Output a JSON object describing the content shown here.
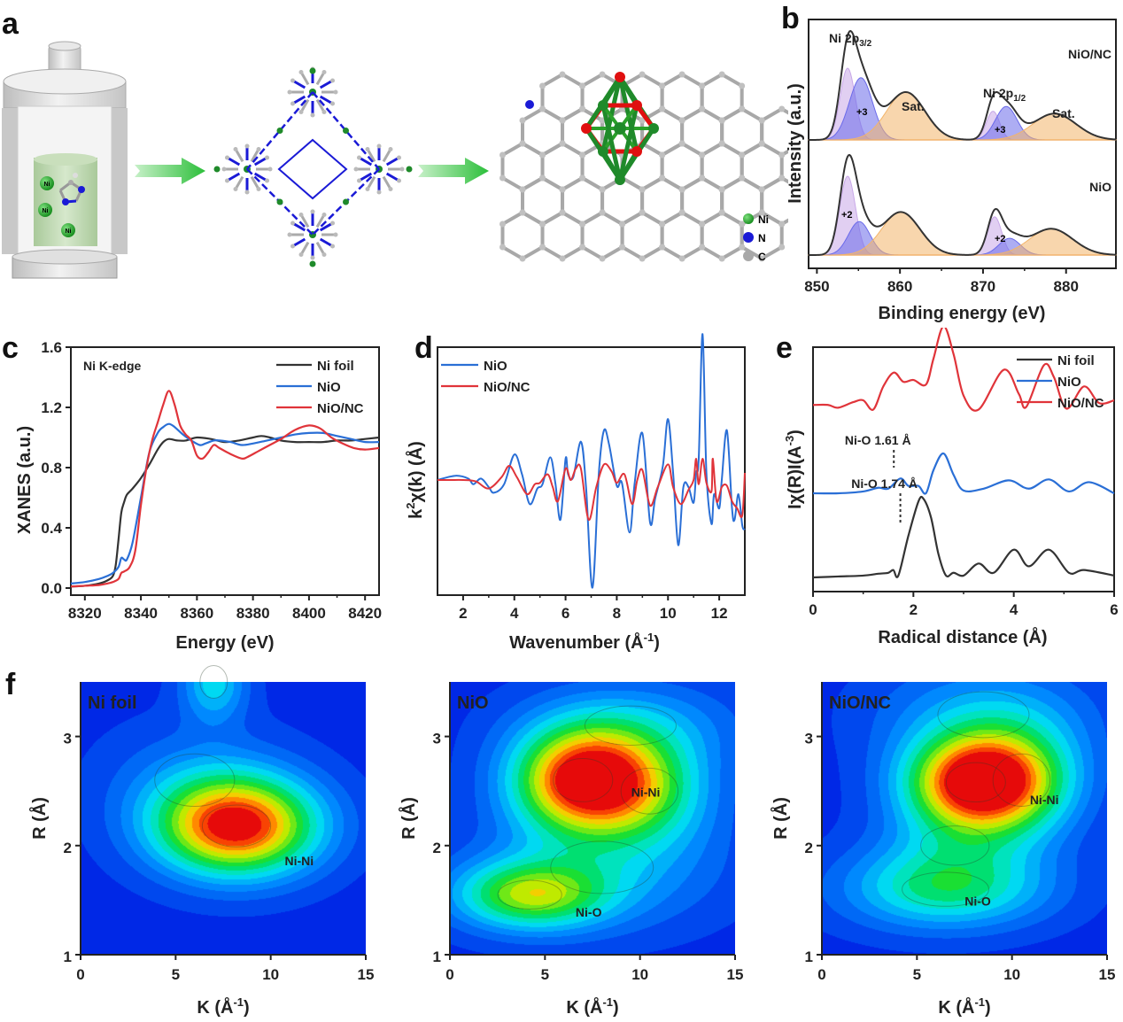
{
  "figure": {
    "panel_labels": [
      "a",
      "b",
      "c",
      "d",
      "e",
      "f"
    ]
  },
  "panel_a": {
    "reactor_labels": [
      "Ni",
      "Ni",
      "Ni"
    ],
    "legend": [
      {
        "label": "Ni",
        "color": "#1f8a2a"
      },
      {
        "label": "N",
        "color": "#1a1ad6"
      },
      {
        "label": "C",
        "color": "#a8a8a8"
      }
    ],
    "arrow_color": "#3cc34a"
  },
  "chart_data": [
    {
      "id": "b",
      "type": "line",
      "title": "",
      "xlabel": "Binding energy (eV)",
      "ylabel": "Intensity (a.u.)",
      "xlim": [
        849,
        886
      ],
      "xticks": [
        850,
        860,
        870,
        880
      ],
      "annotations": [
        "Ni 2p3/2",
        "Sat.",
        "Ni 2p1/2",
        "Sat.",
        "+3",
        "+3",
        "+2",
        "+2"
      ],
      "series": [
        {
          "name": "NiO/NC",
          "baseline": 0.55,
          "components": [
            {
              "label": "",
              "center": 853.7,
              "height": 0.3,
              "width": 0.9,
              "fill": "#c8a8e8"
            },
            {
              "label": "+3",
              "center": 855.3,
              "height": 0.26,
              "width": 1.4,
              "fill": "#6a6aea"
            },
            {
              "label": "Sat.",
              "center": 860.7,
              "height": 0.2,
              "width": 2.3,
              "fill": "#f3b46a"
            },
            {
              "label": "",
              "center": 871.2,
              "height": 0.12,
              "width": 0.8,
              "fill": "#c8a8e8"
            },
            {
              "label": "+3",
              "center": 872.8,
              "height": 0.14,
              "width": 1.3,
              "fill": "#6a6aea"
            },
            {
              "label": "Sat.",
              "center": 878.6,
              "height": 0.11,
              "width": 2.6,
              "fill": "#f3b46a"
            }
          ]
        },
        {
          "name": "NiO",
          "baseline": 0.0,
          "components": [
            {
              "label": "+2",
              "center": 853.7,
              "height": 0.33,
              "width": 0.95,
              "fill": "#c8a8e8"
            },
            {
              "label": "",
              "center": 855.1,
              "height": 0.14,
              "width": 1.3,
              "fill": "#6a6aea"
            },
            {
              "label": "Sat.",
              "center": 860.1,
              "height": 0.18,
              "width": 2.3,
              "fill": "#f3b46a"
            },
            {
              "label": "+2",
              "center": 871.4,
              "height": 0.16,
              "width": 0.85,
              "fill": "#c8a8e8"
            },
            {
              "label": "",
              "center": 873.2,
              "height": 0.07,
              "width": 1.3,
              "fill": "#6a6aea"
            },
            {
              "label": "Sat.",
              "center": 878.2,
              "height": 0.11,
              "width": 2.6,
              "fill": "#f3b46a"
            }
          ]
        }
      ],
      "sample_labels": [
        "NiO/NC",
        "NiO"
      ]
    },
    {
      "id": "c",
      "type": "line",
      "title": "Ni K-edge",
      "xlabel": "Energy (eV)",
      "ylabel": "XANES (a.u.)",
      "xlim": [
        8315,
        8425
      ],
      "ylim": [
        -0.05,
        1.6
      ],
      "xticks": [
        8320,
        8340,
        8360,
        8380,
        8400,
        8420
      ],
      "yticks": [
        "0.0",
        "0.4",
        "0.8",
        "1.2",
        "1.6"
      ],
      "legend_position": "top-right",
      "series": [
        {
          "name": "Ni foil",
          "color": "#333333",
          "x": [
            8315,
            8320,
            8325,
            8328,
            8330,
            8331,
            8332,
            8333,
            8334,
            8335,
            8337,
            8340,
            8343,
            8346,
            8348,
            8350,
            8353,
            8356,
            8360,
            8365,
            8370,
            8375,
            8380,
            8383,
            8386,
            8390,
            8395,
            8400,
            8405,
            8410,
            8415,
            8420,
            8425
          ],
          "y": [
            0.01,
            0.015,
            0.03,
            0.05,
            0.08,
            0.15,
            0.32,
            0.5,
            0.57,
            0.62,
            0.66,
            0.73,
            0.82,
            0.92,
            0.97,
            0.99,
            0.98,
            0.98,
            1.0,
            0.99,
            0.97,
            0.98,
            1.0,
            1.01,
            1.0,
            0.98,
            0.97,
            0.97,
            0.97,
            0.98,
            0.98,
            0.99,
            1.0
          ]
        },
        {
          "name": "NiO",
          "color": "#2a6fd6",
          "x": [
            8315,
            8320,
            8325,
            8328,
            8330,
            8332,
            8333,
            8334,
            8335,
            8337,
            8340,
            8343,
            8346,
            8348,
            8350,
            8352,
            8355,
            8358,
            8361,
            8363,
            8366,
            8368,
            8372,
            8376,
            8380,
            8385,
            8390,
            8395,
            8400,
            8405,
            8410,
            8415,
            8420,
            8425
          ],
          "y": [
            0.03,
            0.04,
            0.06,
            0.08,
            0.1,
            0.14,
            0.2,
            0.19,
            0.19,
            0.3,
            0.6,
            0.9,
            1.03,
            1.07,
            1.09,
            1.07,
            1.02,
            0.98,
            0.95,
            0.96,
            0.98,
            0.98,
            0.97,
            0.95,
            0.96,
            0.98,
            1.0,
            1.02,
            1.03,
            1.03,
            1.01,
            0.99,
            0.97,
            0.97
          ]
        },
        {
          "name": "NiO/NC",
          "color": "#e0343a",
          "x": [
            8315,
            8320,
            8325,
            8328,
            8330,
            8332,
            8333,
            8334,
            8336,
            8338,
            8340,
            8342,
            8344,
            8346,
            8348,
            8350,
            8352,
            8354,
            8356,
            8358,
            8360,
            8362,
            8364,
            8366,
            8368,
            8372,
            8376,
            8378,
            8382,
            8386,
            8390,
            8395,
            8400,
            8404,
            8408,
            8412,
            8416,
            8420,
            8425
          ],
          "y": [
            0.01,
            0.015,
            0.02,
            0.03,
            0.04,
            0.06,
            0.1,
            0.11,
            0.14,
            0.25,
            0.55,
            0.8,
            0.98,
            1.1,
            1.22,
            1.31,
            1.22,
            1.08,
            1.02,
            0.98,
            0.88,
            0.86,
            0.9,
            0.95,
            0.93,
            0.89,
            0.86,
            0.87,
            0.91,
            0.95,
            0.99,
            1.05,
            1.08,
            1.06,
            1.0,
            0.96,
            0.93,
            0.92,
            0.93
          ]
        }
      ]
    },
    {
      "id": "d",
      "type": "line",
      "title": "",
      "xlabel": "Wavenumber (Å-1)",
      "ylabel": "k2χ(k) (Å)",
      "xlim": [
        1,
        13
      ],
      "ylim": [
        -1.0,
        1.2
      ],
      "xticks": [
        2,
        4,
        6,
        8,
        10,
        12
      ],
      "legend_position": "top-left",
      "series": [
        {
          "name": "NiO",
          "color": "#2a6fd6",
          "x": [
            1.0,
            1.7,
            2.2,
            2.4,
            2.7,
            3.0,
            3.2,
            3.6,
            4.0,
            4.3,
            4.6,
            4.9,
            5.1,
            5.4,
            5.6,
            5.8,
            6.0,
            6.1,
            6.3,
            6.6,
            6.8,
            7.05,
            7.3,
            7.5,
            7.7,
            8.0,
            8.2,
            8.5,
            8.7,
            9.0,
            9.3,
            9.5,
            9.8,
            10.0,
            10.2,
            10.4,
            10.6,
            10.8,
            11.0,
            11.1,
            11.2,
            11.35,
            11.5,
            11.7,
            11.8,
            12.0,
            12.1,
            12.3,
            12.5,
            12.6,
            12.75,
            12.9,
            13.0
          ],
          "y": [
            0.0,
            0.03,
            0.01,
            -0.03,
            0.01,
            -0.05,
            -0.09,
            -0.03,
            0.18,
            0.04,
            -0.17,
            -0.06,
            -0.03,
            0.16,
            -0.02,
            -0.28,
            0.15,
            0.04,
            0.02,
            0.27,
            -0.05,
            -0.76,
            0.05,
            0.35,
            0.25,
            -0.04,
            -0.02,
            -0.37,
            -0.02,
            0.33,
            -0.3,
            -0.13,
            0.1,
            0.43,
            0.05,
            -0.46,
            -0.05,
            -0.05,
            -0.16,
            0.05,
            0.15,
            1.03,
            0.05,
            -0.31,
            -0.1,
            -0.2,
            0.0,
            0.35,
            -0.2,
            -0.28,
            -0.1,
            -0.32,
            -0.35
          ]
        },
        {
          "name": "NiO/NC",
          "color": "#e0343a",
          "x": [
            1.0,
            1.5,
            2.0,
            2.5,
            3.0,
            3.5,
            3.8,
            4.1,
            4.5,
            4.8,
            5.0,
            5.3,
            5.5,
            5.7,
            6.0,
            6.2,
            6.4,
            6.6,
            6.9,
            7.2,
            7.5,
            7.8,
            8.0,
            8.3,
            8.6,
            8.8,
            9.0,
            9.3,
            9.6,
            10.0,
            10.2,
            10.5,
            10.8,
            11.0,
            11.1,
            11.2,
            11.35,
            11.5,
            11.7,
            11.75,
            11.9,
            12.1,
            12.3,
            12.5,
            12.7,
            12.9,
            13.0
          ],
          "y": [
            0.0,
            0.0,
            0.0,
            -0.01,
            -0.06,
            0.02,
            0.1,
            0.02,
            -0.1,
            -0.03,
            -0.02,
            0.04,
            -0.05,
            -0.15,
            0.08,
            0.0,
            0.08,
            0.08,
            -0.28,
            -0.05,
            0.11,
            0.06,
            -0.02,
            0.04,
            -0.17,
            0.0,
            0.07,
            -0.18,
            -0.05,
            0.11,
            -0.05,
            -0.17,
            -0.07,
            0.0,
            0.15,
            -0.03,
            0.15,
            -0.02,
            -0.08,
            0.15,
            -0.15,
            -0.05,
            -0.04,
            -0.15,
            -0.2,
            -0.25,
            0.05
          ]
        }
      ]
    },
    {
      "id": "e",
      "type": "line",
      "title": "",
      "xlabel": "Radical distance (Å)",
      "ylabel": "Iχ(R)I(A-3)",
      "xlim": [
        0,
        6
      ],
      "xticks": [
        0,
        2,
        4,
        6
      ],
      "legend_position": "top-right",
      "annotations": [
        {
          "text": "Ni-O 1.61 Å",
          "x": 1.61,
          "series": "NiO/NC"
        },
        {
          "text": "Ni-O 1.74 Å",
          "x": 1.74,
          "series": "NiO"
        }
      ],
      "series": [
        {
          "name": "Ni foil",
          "color": "#333333",
          "offset": 0.0,
          "x": [
            0,
            0.5,
            1.0,
            1.3,
            1.5,
            1.6,
            1.7,
            1.9,
            2.1,
            2.2,
            2.35,
            2.5,
            2.65,
            2.8,
            3.0,
            3.3,
            3.6,
            4.0,
            4.3,
            4.7,
            5.1,
            5.4,
            6.0
          ],
          "y": [
            0.0,
            0.01,
            0.02,
            0.04,
            0.05,
            0.08,
            0.02,
            0.45,
            0.82,
            0.85,
            0.65,
            0.25,
            0.02,
            0.05,
            0.02,
            0.15,
            0.05,
            0.3,
            0.12,
            0.3,
            0.05,
            0.08,
            0.02
          ]
        },
        {
          "name": "NiO",
          "color": "#2a6fd6",
          "offset": 1.0,
          "x": [
            0,
            0.5,
            1.0,
            1.3,
            1.5,
            1.74,
            1.9,
            2.1,
            2.25,
            2.4,
            2.6,
            2.8,
            3.0,
            3.4,
            3.9,
            4.3,
            4.7,
            5.1,
            5.5,
            6.0
          ],
          "y": [
            0.0,
            0.0,
            0.02,
            0.06,
            0.05,
            0.16,
            0.08,
            0.08,
            0.0,
            0.25,
            0.43,
            0.2,
            0.03,
            0.05,
            0.14,
            0.05,
            0.15,
            0.02,
            0.12,
            0.0
          ]
        },
        {
          "name": "NiO/NC",
          "color": "#e0343a",
          "offset": 2.05,
          "x": [
            0,
            0.3,
            0.5,
            0.8,
            1.0,
            1.2,
            1.4,
            1.61,
            1.8,
            2.0,
            2.25,
            2.4,
            2.6,
            2.8,
            3.0,
            3.3,
            3.8,
            4.1,
            4.25,
            4.6,
            4.8,
            5.05,
            5.4,
            5.7,
            6.0
          ],
          "y": [
            0.0,
            0.0,
            -0.03,
            0.03,
            0.05,
            -0.05,
            0.2,
            0.35,
            0.25,
            0.27,
            0.22,
            0.5,
            0.85,
            0.55,
            0.1,
            -0.05,
            0.38,
            0.12,
            -0.02,
            0.43,
            0.3,
            -0.04,
            0.2,
            0.02,
            0.05
          ]
        }
      ]
    },
    {
      "id": "f",
      "type": "heatmap",
      "xlabel": "K (Å-1)",
      "ylabel": "R (Å)",
      "xlim": [
        0,
        15
      ],
      "ylim": [
        1,
        3.5
      ],
      "xticks": [
        0,
        5,
        10,
        15
      ],
      "yticks": [
        1,
        2,
        3
      ],
      "maps": [
        {
          "name": "Ni foil",
          "annotations": [
            {
              "text": "Ni-Ni",
              "k": 11.5,
              "r": 1.82
            }
          ],
          "peaks": [
            {
              "k": 8.2,
              "r": 2.18,
              "amp": 1.0,
              "sk": 3.0,
              "sr": 0.32
            },
            {
              "k": 7.0,
              "r": 3.5,
              "amp": 0.35,
              "sk": 1.2,
              "sr": 0.25
            },
            {
              "k": 6.0,
              "r": 2.6,
              "amp": 0.15,
              "sk": 3.5,
              "sr": 0.4
            }
          ]
        },
        {
          "name": "NiO",
          "annotations": [
            {
              "text": "Ni-Ni",
              "k": 10.3,
              "r": 2.45
            },
            {
              "text": "Ni-O",
              "k": 7.3,
              "r": 1.35
            }
          ],
          "peaks": [
            {
              "k": 7.0,
              "r": 2.6,
              "amp": 1.0,
              "sk": 2.6,
              "sr": 0.33
            },
            {
              "k": 4.2,
              "r": 1.55,
              "amp": 0.6,
              "sk": 2.8,
              "sr": 0.22
            },
            {
              "k": 10.5,
              "r": 2.5,
              "amp": 0.35,
              "sk": 2.5,
              "sr": 0.35
            },
            {
              "k": 8.0,
              "r": 1.8,
              "amp": 0.25,
              "sk": 4.5,
              "sr": 0.4
            },
            {
              "k": 9.5,
              "r": 3.1,
              "amp": 0.25,
              "sk": 4.0,
              "sr": 0.3
            }
          ]
        },
        {
          "name": "NiO/NC",
          "annotations": [
            {
              "text": "Ni-Ni",
              "k": 11.7,
              "r": 2.38
            },
            {
              "text": "Ni-O",
              "k": 8.2,
              "r": 1.45
            }
          ],
          "peaks": [
            {
              "k": 8.1,
              "r": 2.58,
              "amp": 1.0,
              "sk": 2.6,
              "sr": 0.3
            },
            {
              "k": 6.5,
              "r": 1.6,
              "amp": 0.45,
              "sk": 3.8,
              "sr": 0.26
            },
            {
              "k": 10.5,
              "r": 2.6,
              "amp": 0.3,
              "sk": 2.5,
              "sr": 0.4
            },
            {
              "k": 8.5,
              "r": 3.2,
              "amp": 0.25,
              "sk": 4.0,
              "sr": 0.35
            },
            {
              "k": 7.0,
              "r": 2.0,
              "amp": 0.2,
              "sk": 3.0,
              "sr": 0.3
            }
          ]
        }
      ]
    }
  ]
}
